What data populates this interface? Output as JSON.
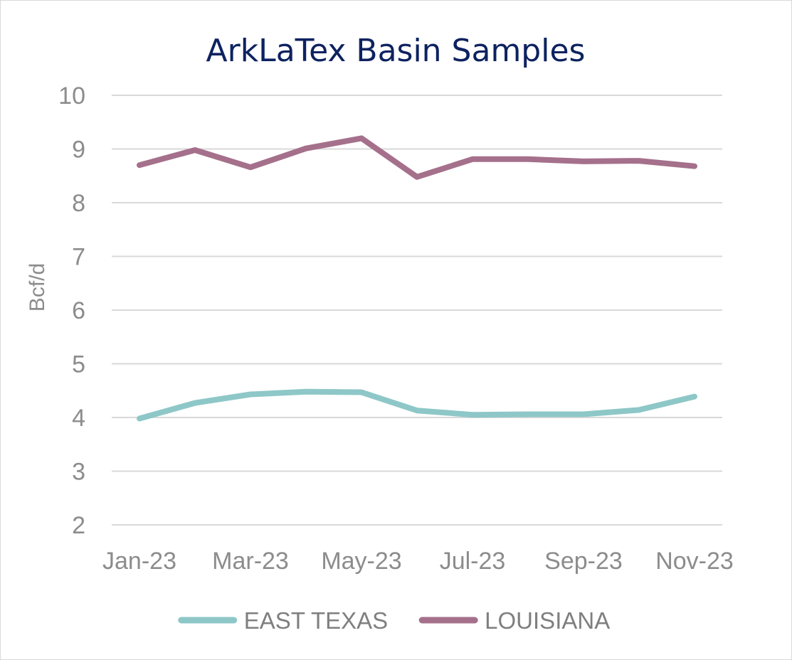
{
  "chart_data": {
    "type": "line",
    "title": "ArkLaTex Basin Samples",
    "xlabel": "",
    "ylabel": "Bcf/d",
    "ylim": [
      2,
      10
    ],
    "yticks": [
      2,
      3,
      4,
      5,
      6,
      7,
      8,
      9,
      10
    ],
    "grid": true,
    "legend": "bottom",
    "categories": [
      "Jan-23",
      "Feb-23",
      "Mar-23",
      "Apr-23",
      "May-23",
      "Jun-23",
      "Jul-23",
      "Aug-23",
      "Sep-23",
      "Oct-23",
      "Nov-23"
    ],
    "xtick_labels": [
      "Jan-23",
      "Mar-23",
      "May-23",
      "Jul-23",
      "Sep-23",
      "Nov-23"
    ],
    "series": [
      {
        "name": "EAST TEXAS",
        "color": "#8ec7c7",
        "values": [
          3.98,
          4.27,
          4.43,
          4.48,
          4.47,
          4.13,
          4.05,
          4.06,
          4.06,
          4.14,
          4.39
        ]
      },
      {
        "name": "LOUISIANA",
        "color": "#a5708b",
        "values": [
          8.7,
          8.98,
          8.66,
          9.01,
          9.2,
          8.48,
          8.81,
          8.81,
          8.77,
          8.78,
          8.68
        ]
      }
    ]
  }
}
